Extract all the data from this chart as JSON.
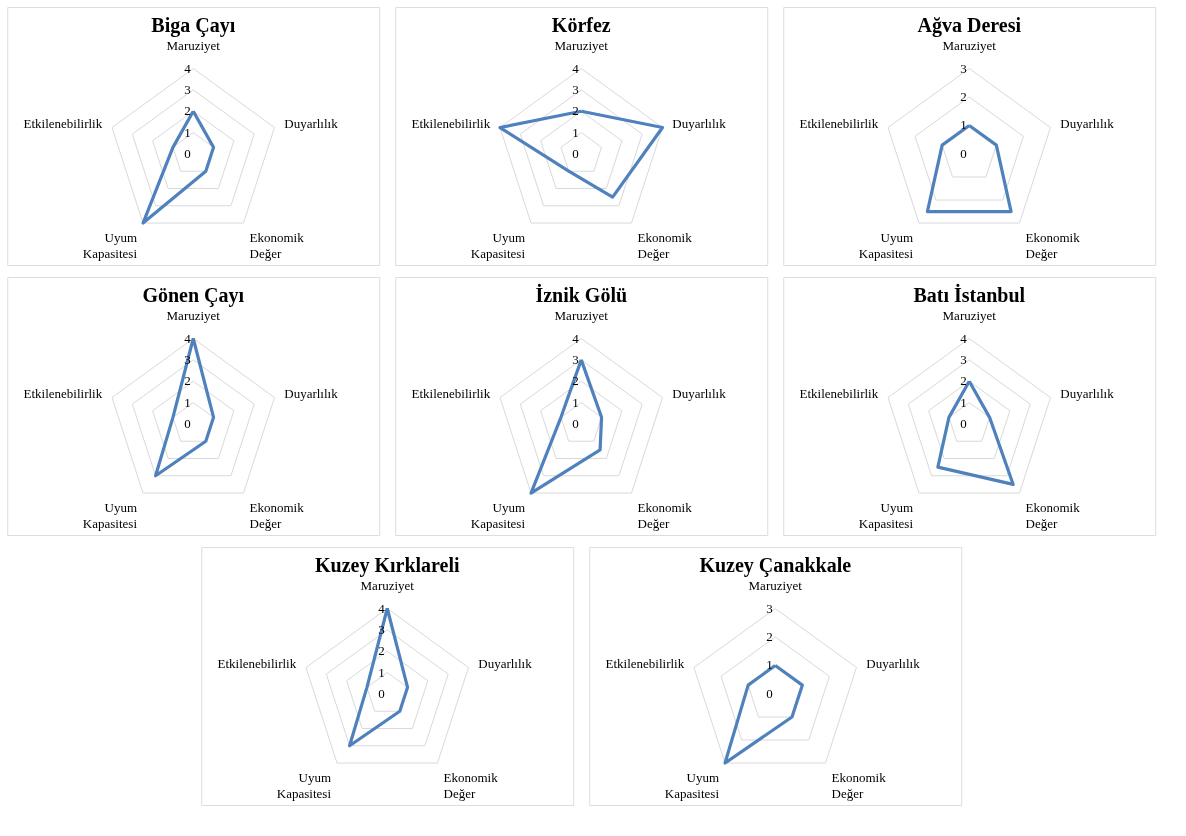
{
  "chart_data": [
    {
      "type": "radar",
      "title": "Biga Çayı",
      "categories": [
        "Maruziyet",
        "Duyarlılık",
        "Ekonomik Değer",
        "Uyum Kapasitesi",
        "Etkilenebilirlik"
      ],
      "series": [
        {
          "color": "#4f81bd",
          "values": [
            2,
            1,
            1,
            4,
            1
          ]
        }
      ],
      "ylim": [
        0,
        4
      ],
      "yticks": [
        0,
        1,
        2,
        3,
        4
      ],
      "grid": true
    },
    {
      "type": "radar",
      "title": "Körfez",
      "categories": [
        "Maruziyet",
        "Duyarlılık",
        "Ekonomik Değer",
        "Uyum Kapasitesi",
        "Etkilenebilirlik"
      ],
      "series": [
        {
          "color": "#4f81bd",
          "values": [
            2,
            4,
            2.5,
            1,
            4
          ]
        }
      ],
      "ylim": [
        0,
        4
      ],
      "yticks": [
        0,
        1,
        2,
        3,
        4
      ],
      "grid": true
    },
    {
      "type": "radar",
      "title": "Ağva Deresi",
      "categories": [
        "Maruziyet",
        "Duyarlılık",
        "Ekonomik Değer",
        "Uyum Kapasitesi",
        "Etkilenebilirlik"
      ],
      "series": [
        {
          "color": "#4f81bd",
          "values": [
            1,
            1,
            2.5,
            2.5,
            1
          ]
        }
      ],
      "ylim": [
        0,
        3
      ],
      "yticks": [
        0,
        1,
        2,
        3
      ],
      "grid": true
    },
    {
      "type": "radar",
      "title": "Gönen Çayı",
      "categories": [
        "Maruziyet",
        "Duyarlılık",
        "Ekonomik Değer",
        "Uyum Kapasitesi",
        "Etkilenebilirlik"
      ],
      "series": [
        {
          "color": "#4f81bd",
          "values": [
            4,
            1,
            1,
            3,
            1
          ]
        }
      ],
      "ylim": [
        0,
        4
      ],
      "yticks": [
        0,
        1,
        2,
        3,
        4
      ],
      "grid": true
    },
    {
      "type": "radar",
      "title": "İznik Gölü",
      "categories": [
        "Maruziyet",
        "Duyarlılık",
        "Ekonomik Değer",
        "Uyum Kapasitesi",
        "Etkilenebilirlik"
      ],
      "series": [
        {
          "color": "#4f81bd",
          "values": [
            3,
            1,
            1.5,
            4,
            1
          ]
        }
      ],
      "ylim": [
        0,
        4
      ],
      "yticks": [
        0,
        1,
        2,
        3,
        4
      ],
      "grid": true
    },
    {
      "type": "radar",
      "title": "Batı İstanbul",
      "categories": [
        "Maruziyet",
        "Duyarlılık",
        "Ekonomik Değer",
        "Uyum Kapasitesi",
        "Etkilenebilirlik"
      ],
      "series": [
        {
          "color": "#4f81bd",
          "values": [
            2,
            1,
            3.5,
            2.5,
            1
          ]
        }
      ],
      "ylim": [
        0,
        4
      ],
      "yticks": [
        0,
        1,
        2,
        3,
        4
      ],
      "grid": true
    },
    {
      "type": "radar",
      "title": "Kuzey Kırklareli",
      "categories": [
        "Maruziyet",
        "Duyarlılık",
        "Ekonomik Değer",
        "Uyum Kapasitesi",
        "Etkilenebilirlik"
      ],
      "series": [
        {
          "color": "#4f81bd",
          "values": [
            4,
            1,
            1,
            3,
            1
          ]
        }
      ],
      "ylim": [
        0,
        4
      ],
      "yticks": [
        0,
        1,
        2,
        3,
        4
      ],
      "grid": true
    },
    {
      "type": "radar",
      "title": "Kuzey Çanakkale",
      "categories": [
        "Maruziyet",
        "Duyarlılık",
        "Ekonomik Değer",
        "Uyum Kapasitesi",
        "Etkilenebilirlik"
      ],
      "series": [
        {
          "color": "#4f81bd",
          "values": [
            1,
            1,
            1,
            3,
            1
          ]
        }
      ],
      "ylim": [
        0,
        3
      ],
      "yticks": [
        0,
        1,
        2,
        3
      ],
      "grid": true
    }
  ]
}
